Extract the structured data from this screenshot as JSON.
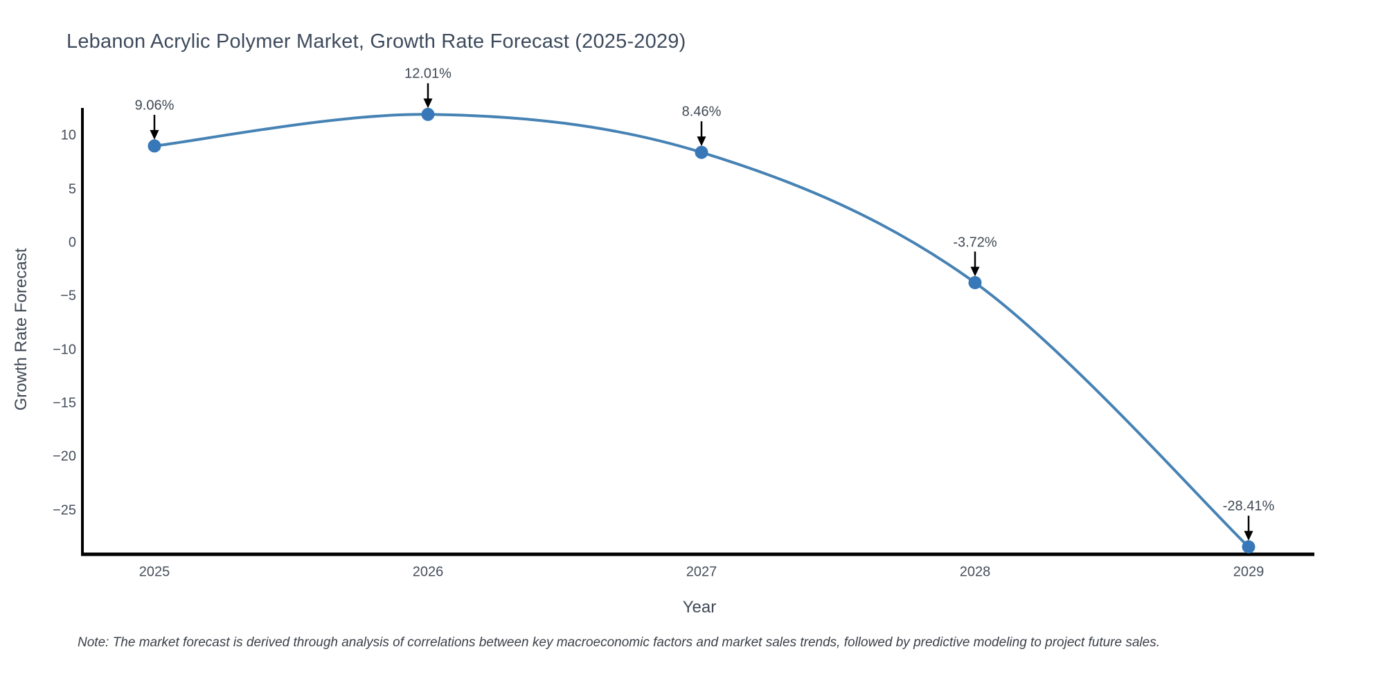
{
  "title": "Lebanon Acrylic Polymer Market, Growth Rate Forecast (2025-2029)",
  "note": "Note: The market forecast is derived through analysis of correlations between key macroeconomic factors and market sales trends, followed by predictive modeling to project future sales.",
  "chart_data": {
    "type": "line",
    "title": "Lebanon Acrylic Polymer Market, Growth Rate Forecast (2025-2029)",
    "xlabel": "Year",
    "ylabel": "Growth Rate Forecast",
    "x": [
      "2025",
      "2026",
      "2027",
      "2028",
      "2029"
    ],
    "values": [
      9.06,
      12.01,
      8.46,
      -3.72,
      -28.41
    ],
    "point_labels": [
      "9.06%",
      "12.01%",
      "8.46%",
      "-3.72%",
      "-28.41%"
    ],
    "yticks": [
      10,
      5,
      0,
      -5,
      -10,
      -15,
      -20,
      -25
    ],
    "ytick_labels": [
      "10",
      "5",
      "0",
      "−5",
      "−10",
      "−15",
      "−20",
      "−25"
    ],
    "ylim": [
      -29.2,
      12.5
    ],
    "grid": false,
    "legend": false,
    "line_color": "#4682b4",
    "marker_color": "#3878b9",
    "axis_color": "#000000",
    "arrow_color": "#000000",
    "text_color": "#3f4854"
  }
}
